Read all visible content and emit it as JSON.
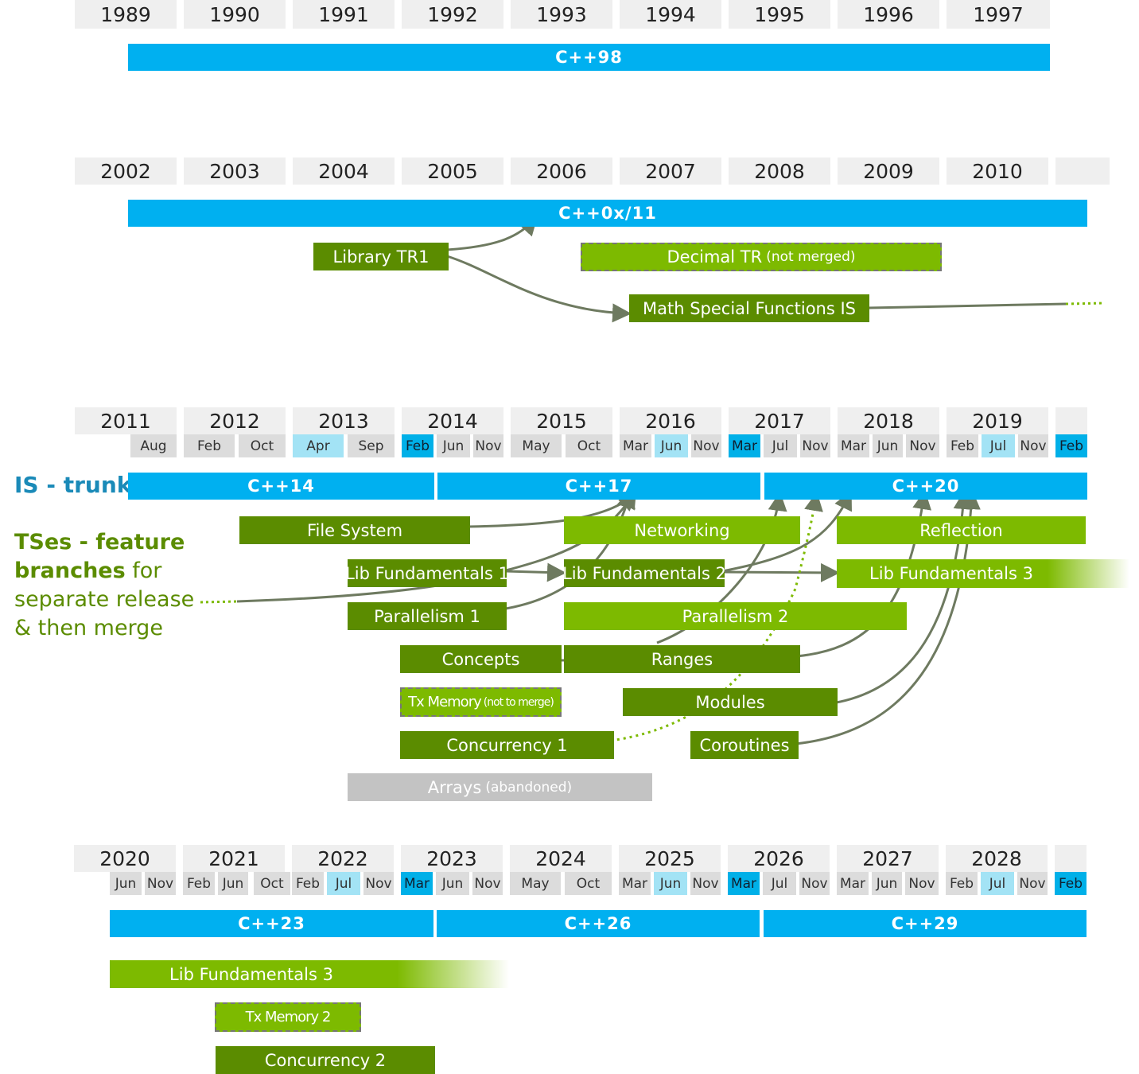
{
  "section1": {
    "years": [
      "1989",
      "1990",
      "1991",
      "1992",
      "1993",
      "1994",
      "1995",
      "1996",
      "1997"
    ],
    "standard": "C++98"
  },
  "section2": {
    "years": [
      "2002",
      "2003",
      "2004",
      "2005",
      "2006",
      "2007",
      "2008",
      "2009",
      "2010",
      ""
    ],
    "standard": "C++0x/11",
    "library_tr1": "Library TR1",
    "decimal_tr": "Decimal TR",
    "decimal_note": "(not merged)",
    "math_special": "Math Special Functions IS"
  },
  "section3": {
    "years": [
      "2011",
      "2012",
      "2013",
      "2014",
      "2015",
      "2016",
      "2017",
      "2018",
      "2019",
      ""
    ],
    "months": [
      "Aug",
      "Feb",
      "Oct",
      "Apr",
      "Sep",
      "Feb",
      "Jun",
      "Nov",
      "May",
      "Oct",
      "Mar",
      "Jun",
      "Nov",
      "Mar",
      "Jul",
      "Nov",
      "Mar",
      "Jun",
      "Nov",
      "Feb",
      "Jul",
      "Nov",
      "Feb"
    ],
    "standards": [
      "C++14",
      "C++17",
      "C++20"
    ],
    "is_trunk": "IS - trunk",
    "tses_line1": "TSes - feature",
    "tses_line2_bold": "branches",
    "tses_line2_rest": " for",
    "tses_line3": "separate release",
    "tses_line4": "& then merge",
    "file_system": "File System",
    "networking": "Networking",
    "reflection": "Reflection",
    "lib_fund_1": "Lib Fundamentals 1",
    "lib_fund_2": "Lib Fundamentals 2",
    "lib_fund_3": "Lib Fundamentals 3",
    "parallelism_1": "Parallelism 1",
    "parallelism_2": "Parallelism 2",
    "concepts": "Concepts",
    "ranges": "Ranges",
    "tx_memory": "Tx Memory",
    "tx_memory_note": "(not to merge)",
    "modules": "Modules",
    "concurrency_1": "Concurrency 1",
    "coroutines": "Coroutines",
    "arrays": "Arrays",
    "arrays_note": "(abandoned)"
  },
  "section4": {
    "years": [
      "2020",
      "2021",
      "2022",
      "2023",
      "2024",
      "2025",
      "2026",
      "2027",
      "2028",
      ""
    ],
    "months": [
      "Jun",
      "Nov",
      "Feb",
      "Jun",
      "Oct",
      "Feb",
      "Jul",
      "Nov",
      "Mar",
      "Jun",
      "Nov",
      "May",
      "Oct",
      "Mar",
      "Jun",
      "Nov",
      "Mar",
      "Jul",
      "Nov",
      "Mar",
      "Jun",
      "Nov",
      "Feb",
      "Jul",
      "Nov",
      "Feb"
    ],
    "standards": [
      "C++23",
      "C++26",
      "C++29"
    ],
    "lib_fund_3": "Lib Fundamentals 3",
    "tx_memory_2": "Tx Memory 2",
    "concurrency_2": "Concurrency 2"
  },
  "colors": {
    "standard_blue": "#00b0f0",
    "ts_dark_green": "#5b8c00",
    "ts_light_green": "#7dba00",
    "abandoned_gray": "#c3c3c3",
    "label_blue": "#1a8ab8",
    "label_green": "#5b8c00"
  }
}
